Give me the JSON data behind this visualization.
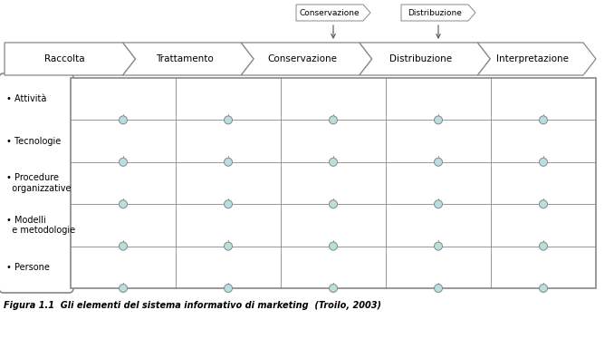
{
  "arrow_labels": [
    "Raccolta",
    "Trattamento",
    "Conservazione",
    "Distribuzione",
    "Interpretazione"
  ],
  "row_labels": [
    "• Attività",
    "• Tecnologie",
    "• Procedure\n  organizzative",
    "• Modelli\n  e metodologie",
    "• Persone"
  ],
  "small_arrow_labels": [
    "Conservazione",
    "Distribuzione"
  ],
  "caption": "Figura 1.1  Gli elementi del sistema informativo di marketing  (Troilo, 2003)",
  "arrow_color": "#ffffff",
  "arrow_edge_color": "#888888",
  "grid_color": "#888888",
  "dot_fill": "#b8dede",
  "dot_edge": "#888888",
  "bg_color": "#ffffff",
  "text_color": "#000000",
  "font_size": 7.5,
  "small_font_size": 6.5,
  "caption_font_size": 7.0,
  "grid_lw": 0.6,
  "border_lw": 1.2
}
